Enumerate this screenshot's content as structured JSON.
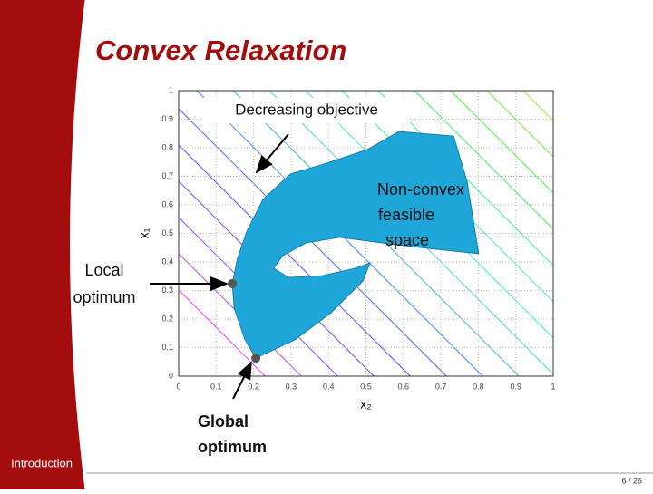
{
  "title": "Convex Relaxation",
  "footer": {
    "section": "Introduction",
    "page": "6 / 26"
  },
  "chart_data": {
    "type": "region",
    "xlabel": "x₂",
    "ylabel": "x₁",
    "xlim": [
      0,
      1
    ],
    "ylim": [
      0,
      1
    ],
    "xticks": [
      0,
      0.1,
      0.2,
      0.3,
      0.4,
      0.5,
      0.6,
      0.7,
      0.8,
      0.9,
      1
    ],
    "yticks": [
      0,
      0.1,
      0.2,
      0.3,
      0.4,
      0.5,
      0.6,
      0.7,
      0.8,
      0.9,
      1
    ],
    "grid": true,
    "region": {
      "color": "#1fa6d8",
      "x": [
        0.143,
        0.157,
        0.182,
        0.225,
        0.298,
        0.395,
        0.504,
        0.588,
        0.734,
        0.77,
        0.801,
        0.661,
        0.54,
        0.431,
        0.341,
        0.278,
        0.254,
        0.293,
        0.383,
        0.472,
        0.511,
        0.492,
        0.407,
        0.31,
        0.206,
        0.177,
        0.148
      ],
      "y": [
        0.324,
        0.413,
        0.508,
        0.619,
        0.708,
        0.746,
        0.794,
        0.857,
        0.841,
        0.683,
        0.429,
        0.448,
        0.467,
        0.486,
        0.467,
        0.422,
        0.378,
        0.346,
        0.352,
        0.378,
        0.397,
        0.333,
        0.222,
        0.127,
        0.063,
        0.127,
        0.238
      ]
    },
    "points": {
      "color": "#555555",
      "x": [
        0.143,
        0.206
      ],
      "y": [
        0.324,
        0.063
      ]
    },
    "annotations": {
      "objective": "Decreasing objective",
      "feasible": [
        "Non-convex",
        "feasible",
        "space"
      ],
      "local": [
        "Local",
        "optimum"
      ],
      "global": [
        "Global",
        "optimum"
      ]
    }
  }
}
